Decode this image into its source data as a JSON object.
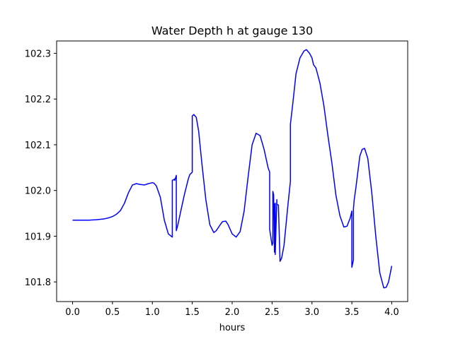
{
  "chart_data": {
    "type": "line",
    "title": "Water Depth h at gauge 130",
    "xlabel": "hours",
    "ylabel": "",
    "xlim": [
      -0.2,
      4.2
    ],
    "ylim": [
      101.757,
      102.327
    ],
    "xticks": [
      0.0,
      0.5,
      1.0,
      1.5,
      2.0,
      2.5,
      3.0,
      3.5,
      4.0
    ],
    "xtick_labels": [
      "0.0",
      "0.5",
      "1.0",
      "1.5",
      "2.0",
      "2.5",
      "3.0",
      "3.5",
      "4.0"
    ],
    "yticks": [
      101.8,
      101.9,
      102.0,
      102.1,
      102.2,
      102.3
    ],
    "ytick_labels": [
      "101.8",
      "101.9",
      "102.0",
      "102.1",
      "102.2",
      "102.3"
    ],
    "grid": false,
    "series": [
      {
        "color": "#0000ff",
        "x": [
          0.0,
          0.1,
          0.2,
          0.3,
          0.35,
          0.4,
          0.45,
          0.5,
          0.55,
          0.6,
          0.65,
          0.7,
          0.75,
          0.8,
          0.85,
          0.9,
          0.95,
          1.0,
          1.02,
          1.05,
          1.1,
          1.15,
          1.2,
          1.25,
          1.25,
          1.28,
          1.28,
          1.3,
          1.3,
          1.32,
          1.35,
          1.4,
          1.45,
          1.47,
          1.5,
          1.5,
          1.52,
          1.55,
          1.58,
          1.62,
          1.67,
          1.72,
          1.77,
          1.8,
          1.85,
          1.88,
          1.92,
          1.95,
          2.0,
          2.05,
          2.1,
          2.15,
          2.2,
          2.25,
          2.3,
          2.35,
          2.4,
          2.45,
          2.47,
          2.47,
          2.5,
          2.51,
          2.51,
          2.52,
          2.53,
          2.53,
          2.54,
          2.54,
          2.56,
          2.56,
          2.58,
          2.58,
          2.6,
          2.62,
          2.65,
          2.7,
          2.73,
          2.73,
          2.76,
          2.8,
          2.85,
          2.9,
          2.93,
          2.97,
          3.0,
          3.02,
          3.05,
          3.1,
          3.15,
          3.2,
          3.25,
          3.3,
          3.35,
          3.4,
          3.44,
          3.48,
          3.5,
          3.5,
          3.52,
          3.52,
          3.53,
          3.55,
          3.6,
          3.63,
          3.66,
          3.7,
          3.75,
          3.8,
          3.85,
          3.9,
          3.93,
          3.96,
          4.0
        ],
        "y": [
          101.935,
          101.935,
          101.935,
          101.936,
          101.937,
          101.938,
          101.94,
          101.943,
          101.948,
          101.956,
          101.972,
          101.995,
          102.012,
          102.015,
          102.013,
          102.012,
          102.015,
          102.017,
          102.016,
          102.01,
          101.985,
          101.935,
          101.905,
          101.898,
          102.022,
          102.025,
          102.022,
          102.033,
          101.912,
          101.925,
          101.95,
          101.99,
          102.025,
          102.035,
          102.04,
          102.163,
          102.166,
          102.16,
          102.13,
          102.06,
          101.98,
          101.925,
          101.908,
          101.912,
          101.925,
          101.932,
          101.933,
          101.925,
          101.905,
          101.898,
          101.91,
          101.955,
          102.03,
          102.1,
          102.125,
          102.12,
          102.09,
          102.05,
          102.04,
          101.915,
          101.88,
          101.885,
          101.998,
          101.99,
          101.865,
          101.97,
          101.972,
          101.86,
          101.98,
          101.97,
          101.968,
          101.967,
          101.845,
          101.852,
          101.88,
          101.97,
          102.02,
          102.145,
          102.19,
          102.255,
          102.29,
          102.305,
          102.308,
          102.3,
          102.29,
          102.275,
          102.268,
          102.235,
          102.185,
          102.12,
          102.06,
          101.99,
          101.945,
          101.92,
          101.922,
          101.94,
          101.955,
          101.832,
          101.848,
          101.96,
          101.98,
          102.005,
          102.075,
          102.09,
          102.092,
          102.07,
          101.995,
          101.9,
          101.82,
          101.787,
          101.788,
          101.8,
          101.835
        ]
      }
    ]
  }
}
